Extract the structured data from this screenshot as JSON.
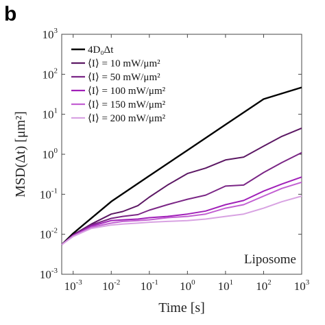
{
  "panel_label": "b",
  "chart_data": {
    "type": "line",
    "title": "",
    "xlabel": "Time [s]",
    "ylabel": "MSD(Δt)  [μm²]",
    "xscale": "log",
    "yscale": "log",
    "xlim": [
      0.0005,
      1000
    ],
    "ylim": [
      0.001,
      1000
    ],
    "x_ticks": [
      "10^-3",
      "10^-2",
      "10^-1",
      "10^0",
      "10^1",
      "10^2",
      "10^3"
    ],
    "y_ticks": [
      "10^-3",
      "10^-2",
      "10^-1",
      "10^0",
      "10^1",
      "10^2",
      "10^3"
    ],
    "annotation": "Liposome",
    "legend_position": "top-left",
    "series": [
      {
        "name": "4D₀Δt",
        "color": "#000000",
        "x": [
          0.0005,
          0.001,
          0.01,
          0.1,
          1,
          10,
          100,
          1000
        ],
        "y": [
          0.0055,
          0.0105,
          0.066,
          0.29,
          1.26,
          5.5,
          24,
          47
        ]
      },
      {
        "name": "⟨I⟩ = 10 mW/μm²",
        "color": "#5b1763",
        "x": [
          0.0005,
          0.001,
          0.003,
          0.01,
          0.02,
          0.05,
          0.1,
          0.3,
          1,
          3,
          10,
          30,
          100,
          300,
          1000
        ],
        "y": [
          0.0055,
          0.0097,
          0.018,
          0.032,
          0.037,
          0.052,
          0.085,
          0.17,
          0.33,
          0.45,
          0.72,
          0.85,
          1.6,
          2.8,
          4.5
        ]
      },
      {
        "name": "⟨I⟩ = 50 mW/μm²",
        "color": "#7a2585",
        "x": [
          0.0005,
          0.001,
          0.003,
          0.01,
          0.02,
          0.05,
          0.1,
          0.3,
          1,
          3,
          10,
          30,
          100,
          300,
          1000
        ],
        "y": [
          0.0055,
          0.0095,
          0.017,
          0.025,
          0.028,
          0.031,
          0.04,
          0.055,
          0.075,
          0.095,
          0.16,
          0.17,
          0.35,
          0.62,
          1.1
        ]
      },
      {
        "name": "⟨I⟩ = 100 mW/μm²",
        "color": "#a020b8",
        "x": [
          0.0005,
          0.001,
          0.003,
          0.01,
          0.02,
          0.05,
          0.1,
          0.3,
          1,
          3,
          10,
          30,
          100,
          300,
          1000
        ],
        "y": [
          0.0055,
          0.0092,
          0.016,
          0.022,
          0.023,
          0.024,
          0.026,
          0.028,
          0.032,
          0.038,
          0.055,
          0.07,
          0.12,
          0.18,
          0.27
        ]
      },
      {
        "name": "⟨I⟩ = 150 mW/μm²",
        "color": "#c25fd2",
        "x": [
          0.0005,
          0.001,
          0.003,
          0.01,
          0.02,
          0.05,
          0.1,
          0.3,
          1,
          3,
          10,
          30,
          100,
          300,
          1000
        ],
        "y": [
          0.0055,
          0.009,
          0.015,
          0.019,
          0.021,
          0.022,
          0.023,
          0.026,
          0.028,
          0.032,
          0.045,
          0.055,
          0.09,
          0.14,
          0.2
        ]
      },
      {
        "name": "⟨I⟩ = 200 mW/μm²",
        "color": "#d8a2e2",
        "x": [
          0.0005,
          0.001,
          0.003,
          0.01,
          0.02,
          0.05,
          0.1,
          0.3,
          1,
          3,
          10,
          30,
          100,
          300,
          1000
        ],
        "y": [
          0.0055,
          0.0088,
          0.014,
          0.017,
          0.018,
          0.019,
          0.02,
          0.021,
          0.022,
          0.024,
          0.028,
          0.032,
          0.045,
          0.065,
          0.09
        ]
      }
    ]
  }
}
